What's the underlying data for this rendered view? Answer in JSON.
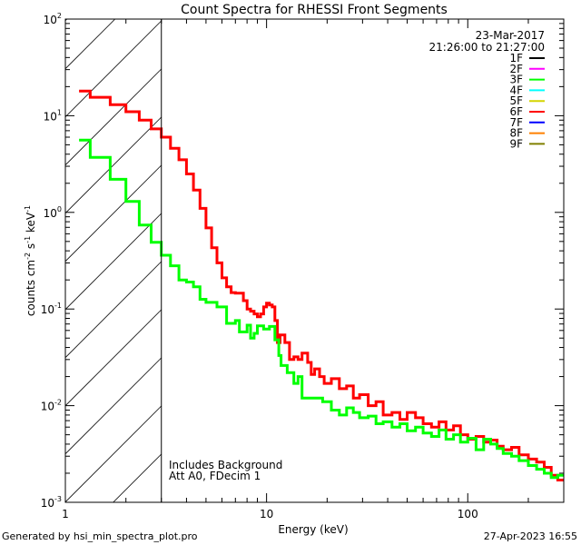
{
  "chart_data": {
    "type": "line",
    "title": "Count Spectra for RHESSI Front Segments",
    "xlabel": "Energy (keV)",
    "ylabel": {
      "base": "counts cm",
      "exp1": "-2",
      "mid1": " s",
      "exp2": "-1",
      "mid2": " keV",
      "exp3": "-1"
    },
    "xscale": "log",
    "yscale": "log",
    "xlim": [
      1,
      300
    ],
    "ylim": [
      0.001,
      100
    ],
    "x_major_ticks": [
      {
        "value": 1,
        "label": "1"
      },
      {
        "value": 10,
        "label": "10"
      },
      {
        "value": 100,
        "label": "100"
      }
    ],
    "y_major_ticks": [
      {
        "value": 100,
        "base": "10",
        "exp": "2"
      },
      {
        "value": 10,
        "base": "10",
        "exp": "1"
      },
      {
        "value": 1,
        "base": "10",
        "exp": "0"
      },
      {
        "value": 0.1,
        "base": "10",
        "exp": "-1"
      },
      {
        "value": 0.01,
        "base": "10",
        "exp": "-2"
      },
      {
        "value": 0.001,
        "base": "10",
        "exp": "-3"
      }
    ],
    "excluded_region_keV": [
      1,
      3
    ],
    "legend": {
      "placement": "top-right",
      "date": "23-Mar-2017",
      "time_range": "21:26:00 to 21:27:00",
      "entries": [
        {
          "label": "1F",
          "color": "#000000"
        },
        {
          "label": "2F",
          "color": "#ff00ff"
        },
        {
          "label": "3F",
          "color": "#00ff00"
        },
        {
          "label": "4F",
          "color": "#00ffff"
        },
        {
          "label": "5F",
          "color": "#d4d400"
        },
        {
          "label": "6F",
          "color": "#ff0000"
        },
        {
          "label": "7F",
          "color": "#0000ff"
        },
        {
          "label": "8F",
          "color": "#ff8000"
        },
        {
          "label": "9F",
          "color": "#808000"
        }
      ]
    },
    "annotations": [
      "Includes Background",
      "Att A0, FDecim 1"
    ],
    "series": [
      {
        "name": "6F",
        "color": "#ff0000",
        "energy_edges": [
          1.17,
          1.33,
          1.67,
          2.0,
          2.33,
          2.67,
          3.0,
          3.33,
          3.67,
          4.0,
          4.33,
          4.67,
          5.0,
          5.33,
          5.67,
          6.0,
          6.33,
          6.67,
          7.0,
          7.67,
          8.0,
          8.33,
          8.67,
          9.0,
          9.33,
          9.67,
          10.0,
          10.33,
          10.67,
          11.0,
          11.33,
          11.67,
          12.33,
          13.0,
          13.67,
          14.33,
          15.0,
          16.0,
          16.67,
          17.33,
          18.33,
          19.33,
          21,
          23,
          25,
          27,
          29,
          32,
          35,
          38,
          42,
          46,
          50,
          55,
          60,
          66,
          72,
          78,
          85,
          92,
          100,
          110,
          120,
          130,
          140,
          150,
          165,
          180,
          200,
          220,
          240,
          260,
          280,
          300
        ],
        "values": [
          18,
          15.5,
          13,
          11,
          9,
          7.3,
          6.0,
          4.6,
          3.5,
          2.5,
          1.7,
          1.1,
          0.69,
          0.43,
          0.3,
          0.21,
          0.17,
          0.148,
          0.146,
          0.122,
          0.1,
          0.095,
          0.089,
          0.083,
          0.089,
          0.105,
          0.115,
          0.11,
          0.105,
          0.076,
          0.045,
          0.054,
          0.045,
          0.03,
          0.032,
          0.03,
          0.035,
          0.028,
          0.021,
          0.024,
          0.02,
          0.017,
          0.019,
          0.015,
          0.016,
          0.012,
          0.013,
          0.01,
          0.011,
          0.008,
          0.0085,
          0.0072,
          0.0085,
          0.0075,
          0.0065,
          0.006,
          0.0068,
          0.0056,
          0.0062,
          0.005,
          0.0045,
          0.0048,
          0.0042,
          0.0044,
          0.0038,
          0.0035,
          0.0037,
          0.0031,
          0.0028,
          0.0026,
          0.0023,
          0.0019,
          0.0017
        ]
      },
      {
        "name": "3F",
        "color": "#00ff00",
        "energy_edges": [
          1.17,
          1.33,
          1.67,
          2.0,
          2.33,
          2.67,
          3.0,
          3.33,
          3.67,
          4.0,
          4.33,
          4.67,
          5.0,
          5.67,
          6.33,
          7.0,
          7.33,
          8.0,
          8.33,
          8.67,
          9.0,
          9.67,
          10.33,
          11.0,
          11.5,
          11.8,
          12.67,
          13.67,
          14.33,
          15.0,
          17.33,
          19,
          21,
          23,
          25,
          27,
          29,
          32,
          35,
          38,
          42,
          46,
          50,
          55,
          60,
          66,
          72,
          78,
          85,
          92,
          100,
          110,
          120,
          130,
          140,
          150,
          165,
          180,
          200,
          220,
          240,
          260,
          280,
          300
        ],
        "values": [
          5.6,
          3.7,
          2.2,
          1.3,
          0.74,
          0.49,
          0.36,
          0.28,
          0.2,
          0.19,
          0.17,
          0.126,
          0.117,
          0.105,
          0.071,
          0.076,
          0.058,
          0.068,
          0.05,
          0.056,
          0.067,
          0.062,
          0.066,
          0.048,
          0.033,
          0.026,
          0.022,
          0.017,
          0.02,
          0.012,
          0.012,
          0.011,
          0.009,
          0.008,
          0.0095,
          0.0085,
          0.0075,
          0.0078,
          0.0065,
          0.0068,
          0.006,
          0.0065,
          0.0055,
          0.006,
          0.0052,
          0.0048,
          0.0056,
          0.0045,
          0.005,
          0.0042,
          0.0046,
          0.0035,
          0.0045,
          0.004,
          0.0036,
          0.0032,
          0.003,
          0.0027,
          0.0024,
          0.0022,
          0.002,
          0.0018,
          0.0019
        ]
      }
    ]
  },
  "footer": {
    "generated_by": "Generated by hsi_min_spectra_plot.pro",
    "timestamp": "27-Apr-2023 16:55"
  }
}
